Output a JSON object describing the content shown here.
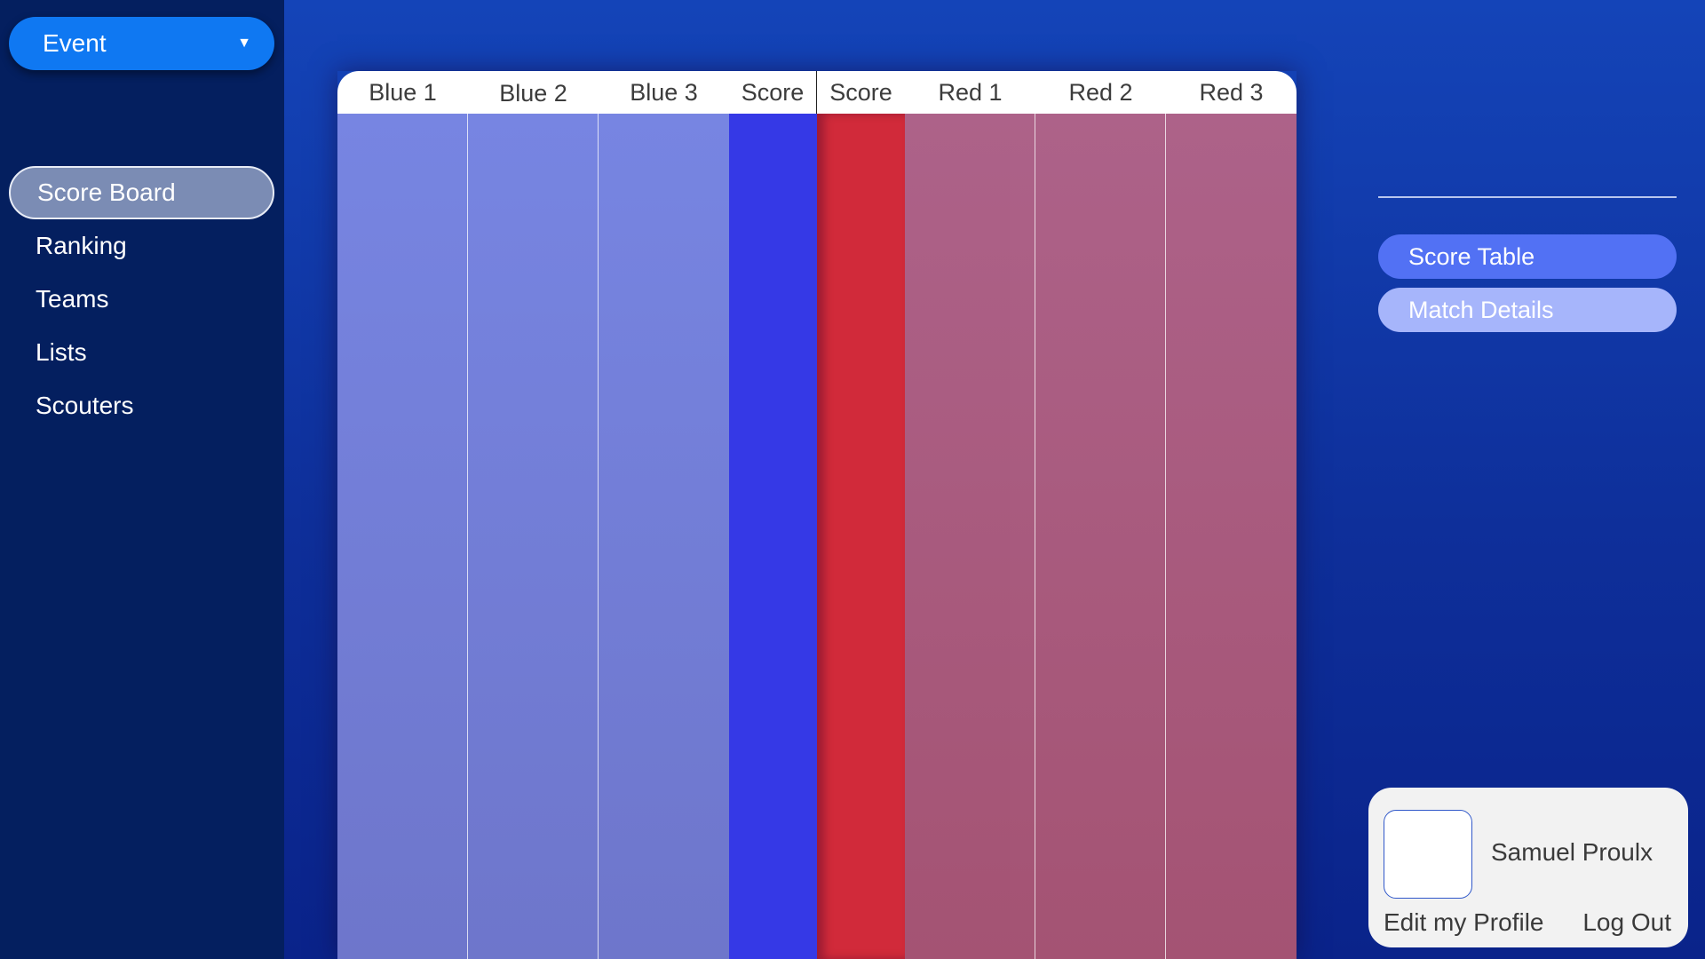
{
  "sidebar": {
    "event_label": "Event",
    "event_caret": "▼",
    "items": [
      {
        "label": "Score Board"
      },
      {
        "label": "Ranking"
      },
      {
        "label": "Teams"
      },
      {
        "label": "Lists"
      },
      {
        "label": "Scouters"
      }
    ]
  },
  "board": {
    "headers": [
      "Blue 1",
      "Blue 2",
      "Blue 3",
      "Score",
      "Score",
      "Red 1",
      "Red 2",
      "Red 3"
    ]
  },
  "right_panel": {
    "score_table_label": "Score Table",
    "match_details_label": "Match Details"
  },
  "profile": {
    "name": "Samuel Proulx",
    "edit_label": "Edit my Profile",
    "logout_label": "Log Out"
  },
  "colors": {
    "blue_team_column": "#7785e2",
    "blue_score_column": "#3539e6",
    "red_score_column": "#d12a3a",
    "red_team_column": "#ad6289",
    "event_button": "#0f78f2",
    "score_table_button": "#5271f4",
    "match_details_button": "#a6b5fb"
  }
}
